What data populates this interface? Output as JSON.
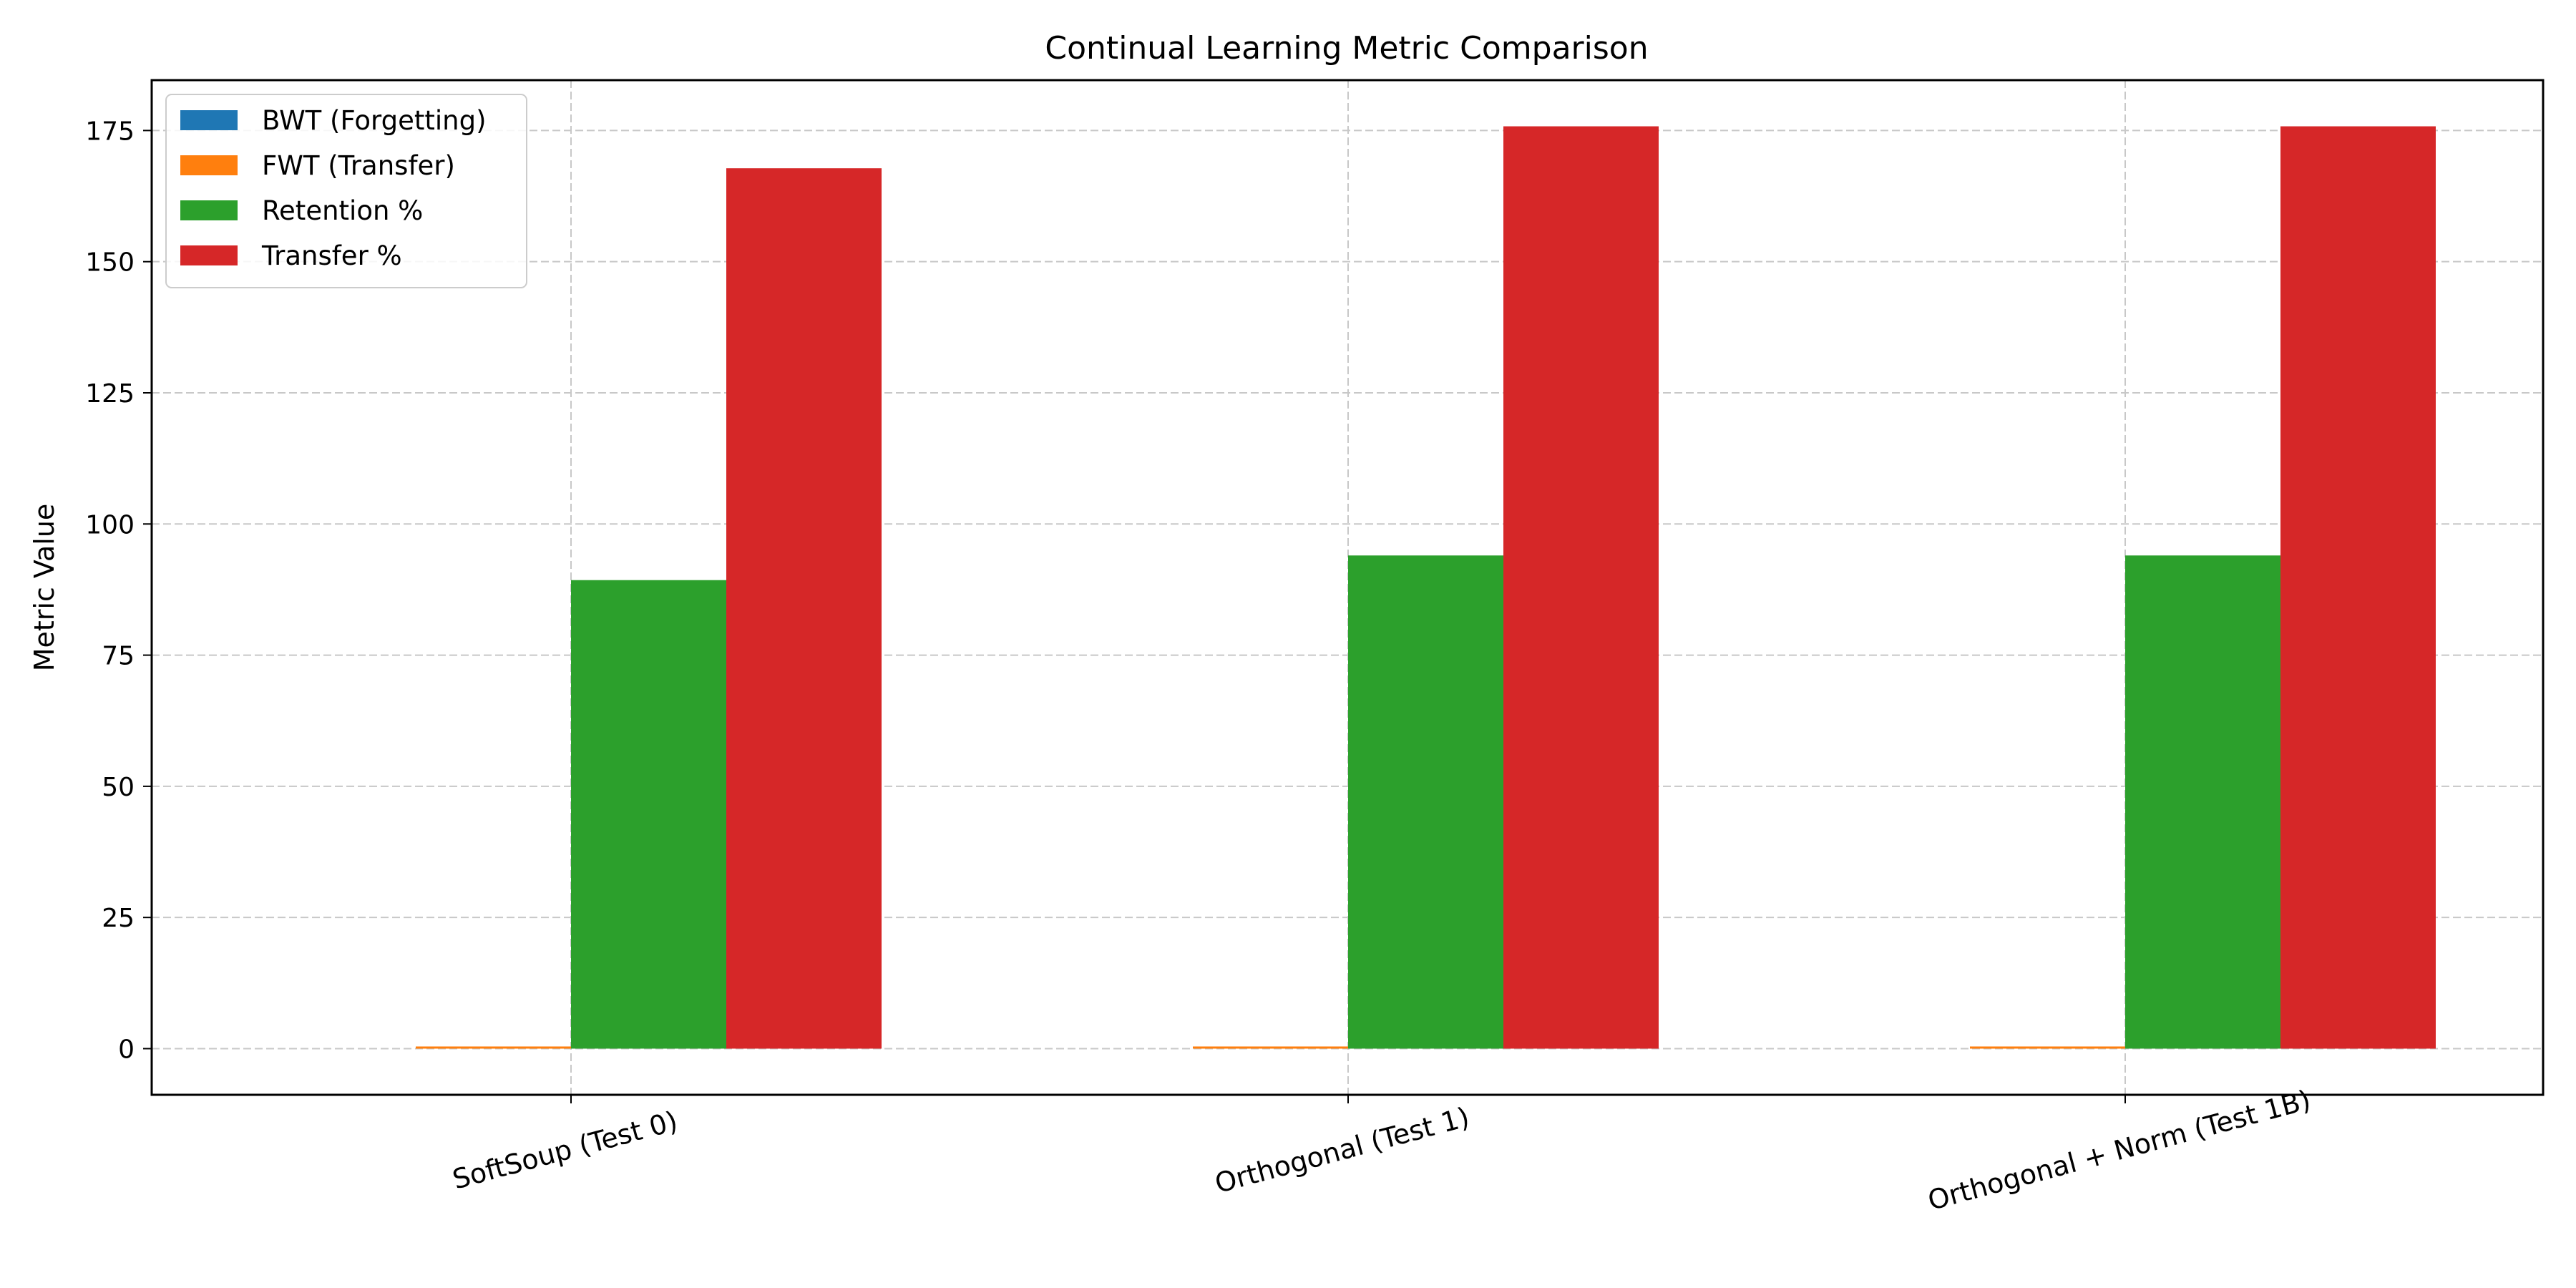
{
  "chart_data": {
    "type": "bar",
    "title": "Continual Learning Metric Comparison",
    "xlabel": "",
    "ylabel": "Metric Value",
    "categories": [
      "SoftSoup (Test 0)",
      "Orthogonal (Test 1)",
      "Orthogonal + Norm (Test 1B)"
    ],
    "series": [
      {
        "name": "BWT (Forgetting)",
        "color": "#1f77b4",
        "values": [
          0.0,
          0.0,
          0.0
        ]
      },
      {
        "name": "FWT (Transfer)",
        "color": "#ff7f0e",
        "values": [
          0.3,
          0.3,
          0.3
        ]
      },
      {
        "name": "Retention %",
        "color": "#2ca02c",
        "values": [
          89.3,
          94.0,
          94.0
        ]
      },
      {
        "name": "Transfer %",
        "color": "#d62728",
        "values": [
          167.8,
          175.8,
          175.8
        ]
      }
    ],
    "ylim": [
      -8.8,
      184.6
    ],
    "yticks": [
      0,
      25,
      50,
      75,
      100,
      125,
      150,
      175
    ],
    "grid": true,
    "legend_position": "top-left"
  }
}
